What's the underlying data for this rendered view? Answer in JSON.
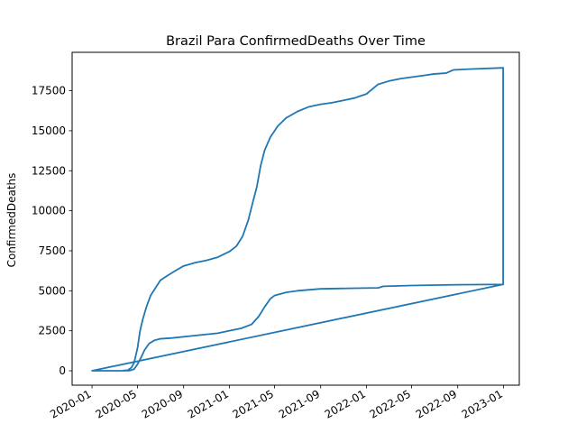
{
  "chart_data": {
    "type": "line",
    "title": "Brazil Para ConfirmedDeaths Over Time",
    "xlabel": "",
    "ylabel": "ConfirmedDeaths",
    "x_ticks": [
      "2020-01",
      "2020-05",
      "2020-09",
      "2021-01",
      "2021-05",
      "2021-09",
      "2022-01",
      "2022-05",
      "2022-09",
      "2023-01"
    ],
    "y_ticks": [
      0,
      2500,
      5000,
      7500,
      10000,
      12500,
      15000,
      17500
    ],
    "xlim": [
      "2019-11-09",
      "2023-02-12"
    ],
    "ylim": [
      -900,
      19900
    ],
    "grid": false,
    "color": "#1f77b4",
    "series": [
      {
        "points": [
          [
            "2020-01-01",
            0
          ],
          [
            "2020-03-20",
            0
          ],
          [
            "2020-04-05",
            40
          ],
          [
            "2020-04-15",
            200
          ],
          [
            "2020-04-22",
            500
          ],
          [
            "2020-05-01",
            1400
          ],
          [
            "2020-05-08",
            2500
          ],
          [
            "2020-05-15",
            3200
          ],
          [
            "2020-05-25",
            4000
          ],
          [
            "2020-06-05",
            4700
          ],
          [
            "2020-06-20",
            5250
          ],
          [
            "2020-07-01",
            5650
          ],
          [
            "2020-07-20",
            5950
          ],
          [
            "2020-08-10",
            6250
          ],
          [
            "2020-09-01",
            6550
          ],
          [
            "2020-10-01",
            6750
          ],
          [
            "2020-11-01",
            6900
          ],
          [
            "2020-12-01",
            7100
          ],
          [
            "2021-01-01",
            7450
          ],
          [
            "2021-01-20",
            7800
          ],
          [
            "2021-02-05",
            8400
          ],
          [
            "2021-02-20",
            9400
          ],
          [
            "2021-03-05",
            10600
          ],
          [
            "2021-03-15",
            11500
          ],
          [
            "2021-03-25",
            12800
          ],
          [
            "2021-04-05",
            13800
          ],
          [
            "2021-04-20",
            14600
          ],
          [
            "2021-05-10",
            15300
          ],
          [
            "2021-06-01",
            15800
          ],
          [
            "2021-07-01",
            16200
          ],
          [
            "2021-08-01",
            16500
          ],
          [
            "2021-09-01",
            16650
          ],
          [
            "2021-10-01",
            16750
          ],
          [
            "2021-11-01",
            16900
          ],
          [
            "2021-12-01",
            17050
          ],
          [
            "2022-01-01",
            17300
          ],
          [
            "2022-02-01",
            17900
          ],
          [
            "2022-03-01",
            18100
          ],
          [
            "2022-04-01",
            18250
          ],
          [
            "2022-05-01",
            18350
          ],
          [
            "2022-06-01",
            18450
          ],
          [
            "2022-07-01",
            18550
          ],
          [
            "2022-08-01",
            18600
          ],
          [
            "2022-08-20",
            18800
          ],
          [
            "2022-10-01",
            18850
          ],
          [
            "2022-12-31",
            18930
          ],
          [
            "2022-12-31",
            5400
          ],
          [
            "2022-09-01",
            5380
          ],
          [
            "2022-05-01",
            5330
          ],
          [
            "2022-02-15",
            5280
          ],
          [
            "2022-02-01",
            5180
          ],
          [
            "2021-12-01",
            5160
          ],
          [
            "2021-09-01",
            5120
          ],
          [
            "2021-07-01",
            5000
          ],
          [
            "2021-06-01",
            4900
          ],
          [
            "2021-05-01",
            4700
          ],
          [
            "2021-04-20",
            4500
          ],
          [
            "2021-04-05",
            4000
          ],
          [
            "2021-03-20",
            3400
          ],
          [
            "2021-03-01",
            2900
          ],
          [
            "2021-02-01",
            2650
          ],
          [
            "2021-01-01",
            2500
          ],
          [
            "2020-12-01",
            2350
          ],
          [
            "2020-10-01",
            2200
          ],
          [
            "2020-08-01",
            2050
          ],
          [
            "2020-07-01",
            2000
          ],
          [
            "2020-06-15",
            1900
          ],
          [
            "2020-06-01",
            1700
          ],
          [
            "2020-05-20",
            1300
          ],
          [
            "2020-05-10",
            800
          ],
          [
            "2020-05-01",
            400
          ],
          [
            "2020-04-22",
            100
          ],
          [
            "2020-04-10",
            10
          ],
          [
            "2020-03-15",
            0
          ],
          [
            "2020-01-01",
            0
          ],
          [
            "2022-12-31",
            5400
          ]
        ]
      }
    ]
  }
}
